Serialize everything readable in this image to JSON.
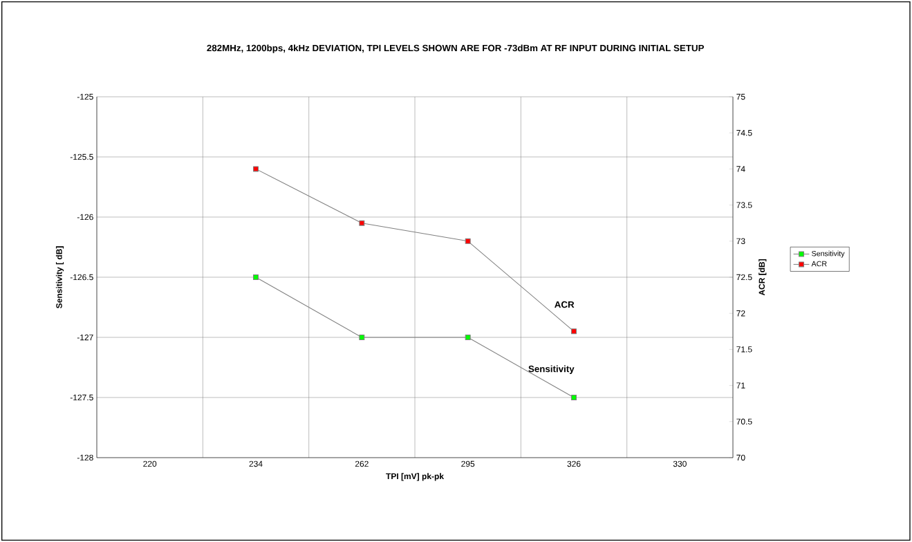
{
  "chart_data": {
    "type": "line",
    "title": "282MHz, 1200bps, 4kHz DEVIATION, TPI LEVELS SHOWN ARE FOR -73dBm AT RF INPUT DURING INITIAL SETUP",
    "xlabel": "TPI  [mV]  pk-pk",
    "ylabel": "Sensitivity  [  dB]",
    "y2label": "ACR  [dB]",
    "categories": [
      "220",
      "234",
      "262",
      "295",
      "326",
      "330"
    ],
    "series": [
      {
        "name": "Sensitivity",
        "color": "#00ff00",
        "values": [
          null,
          -126.5,
          -127,
          -127,
          -127.5,
          null
        ]
      },
      {
        "name": "ACR",
        "color": "#ff0000",
        "axis": "y2",
        "values": [
          null,
          74,
          73.25,
          73,
          71.75,
          null
        ]
      }
    ],
    "ylim": [
      -128,
      -125
    ],
    "yticks": [
      -128,
      -127.5,
      -127,
      -126.5,
      -126,
      -125.5,
      -125
    ],
    "y2lim": [
      70,
      75
    ],
    "y2ticks": [
      70,
      70.5,
      71,
      71.5,
      72,
      72.5,
      73,
      73.5,
      74,
      74.5,
      75
    ],
    "annotations": [
      "ACR",
      "Sensitivity"
    ],
    "grid": true,
    "legend": "right",
    "marker": "square",
    "line_style": "solid"
  }
}
